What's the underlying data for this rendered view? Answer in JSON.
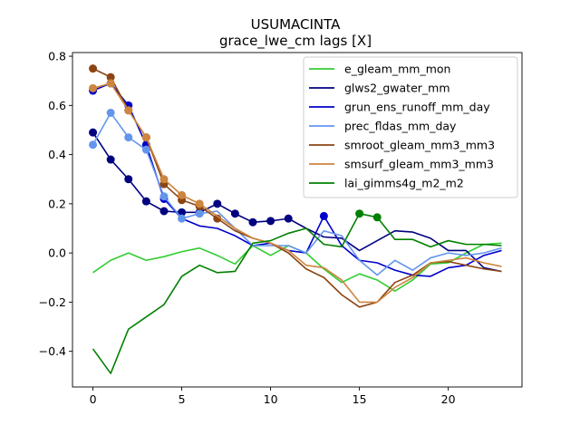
{
  "chart_data": {
    "type": "line",
    "title": "USUMACINTA",
    "subtitle": "grace_lwe_cm lags [X]",
    "xlabel": "",
    "ylabel": "",
    "xlim": [
      -1.15,
      24.15
    ],
    "ylim": [
      -0.545,
      0.815
    ],
    "xticks": [
      0,
      5,
      10,
      15,
      20
    ],
    "yticks": [
      -0.4,
      -0.2,
      0.0,
      0.2,
      0.4,
      0.6,
      0.8
    ],
    "ytick_labels": [
      "−0.4",
      "−0.2",
      "0.0",
      "0.2",
      "0.4",
      "0.6",
      "0.8"
    ],
    "grid": false,
    "legend_position": "upper-right",
    "x": [
      0,
      1,
      2,
      3,
      4,
      5,
      6,
      7,
      8,
      9,
      10,
      11,
      12,
      13,
      14,
      15,
      16,
      17,
      18,
      19,
      20,
      21,
      22,
      23
    ],
    "series": [
      {
        "name": "e_gleam_mm_mon",
        "color": "#32cd32",
        "values": [
          -0.08,
          -0.03,
          0.0,
          -0.03,
          -0.015,
          0.005,
          0.02,
          -0.01,
          -0.045,
          0.03,
          -0.01,
          0.03,
          0.0,
          -0.065,
          -0.12,
          -0.085,
          -0.11,
          -0.155,
          -0.11,
          -0.045,
          -0.04,
          0.0,
          0.035,
          0.04
        ],
        "markers": []
      },
      {
        "name": "glws2_gwater_mm",
        "color": "#000080",
        "values": [
          0.49,
          0.38,
          0.3,
          0.21,
          0.17,
          0.165,
          0.165,
          0.2,
          0.16,
          0.125,
          0.13,
          0.14,
          0.1,
          0.065,
          0.06,
          0.01,
          0.05,
          0.09,
          0.085,
          0.06,
          0.01,
          0.01,
          -0.06,
          -0.075
        ],
        "markers": [
          0,
          1,
          2,
          3,
          4,
          5,
          6,
          7,
          8,
          9,
          10,
          11
        ]
      },
      {
        "name": "grun_ens_runoff_mm_day",
        "color": "#0000cd",
        "values": [
          0.66,
          0.69,
          0.6,
          0.44,
          0.22,
          0.14,
          0.11,
          0.1,
          0.07,
          0.03,
          0.04,
          0.01,
          0.0,
          0.15,
          0.03,
          -0.03,
          -0.04,
          -0.07,
          -0.09,
          -0.095,
          -0.06,
          -0.05,
          -0.01,
          0.01
        ],
        "markers": [
          0,
          1,
          2,
          3,
          4,
          13
        ]
      },
      {
        "name": "prec_fldas_mm_day",
        "color": "#6495ed",
        "values": [
          0.44,
          0.57,
          0.47,
          0.42,
          0.23,
          0.14,
          0.16,
          0.17,
          0.1,
          0.03,
          0.03,
          0.03,
          0.0,
          0.09,
          0.07,
          -0.03,
          -0.09,
          -0.03,
          -0.07,
          -0.02,
          0.0,
          -0.01,
          0.0,
          0.02
        ],
        "markers": [
          0,
          1,
          2,
          3,
          4,
          5,
          6
        ]
      },
      {
        "name": "smroot_gleam_mm3_mm3",
        "color": "#8b4513",
        "values": [
          0.75,
          0.715,
          0.58,
          0.47,
          0.28,
          0.215,
          0.19,
          0.14,
          0.09,
          0.06,
          0.04,
          0.0,
          -0.065,
          -0.1,
          -0.17,
          -0.22,
          -0.2,
          -0.12,
          -0.09,
          -0.04,
          -0.035,
          -0.05,
          -0.065,
          -0.075
        ],
        "markers": [
          0,
          1,
          2,
          3,
          4,
          5,
          6,
          7
        ]
      },
      {
        "name": "smsurf_gleam_mm3_mm3",
        "color": "#cd853f",
        "values": [
          0.67,
          0.69,
          0.58,
          0.47,
          0.3,
          0.235,
          0.2,
          0.15,
          0.1,
          0.06,
          0.04,
          0.01,
          -0.05,
          -0.06,
          -0.11,
          -0.2,
          -0.2,
          -0.14,
          -0.1,
          -0.04,
          -0.03,
          -0.02,
          -0.04,
          -0.055
        ],
        "markers": [
          0,
          1,
          2,
          3,
          4,
          5,
          6
        ]
      },
      {
        "name": "lai_gimms4g_m2_m2",
        "color": "#008000",
        "values": [
          -0.39,
          -0.49,
          -0.31,
          -0.26,
          -0.21,
          -0.095,
          -0.05,
          -0.08,
          -0.075,
          0.04,
          0.05,
          0.08,
          0.1,
          0.035,
          0.025,
          0.16,
          0.145,
          0.055,
          0.055,
          0.025,
          0.05,
          0.035,
          0.035,
          0.03
        ],
        "markers": [
          15,
          16
        ]
      }
    ]
  }
}
